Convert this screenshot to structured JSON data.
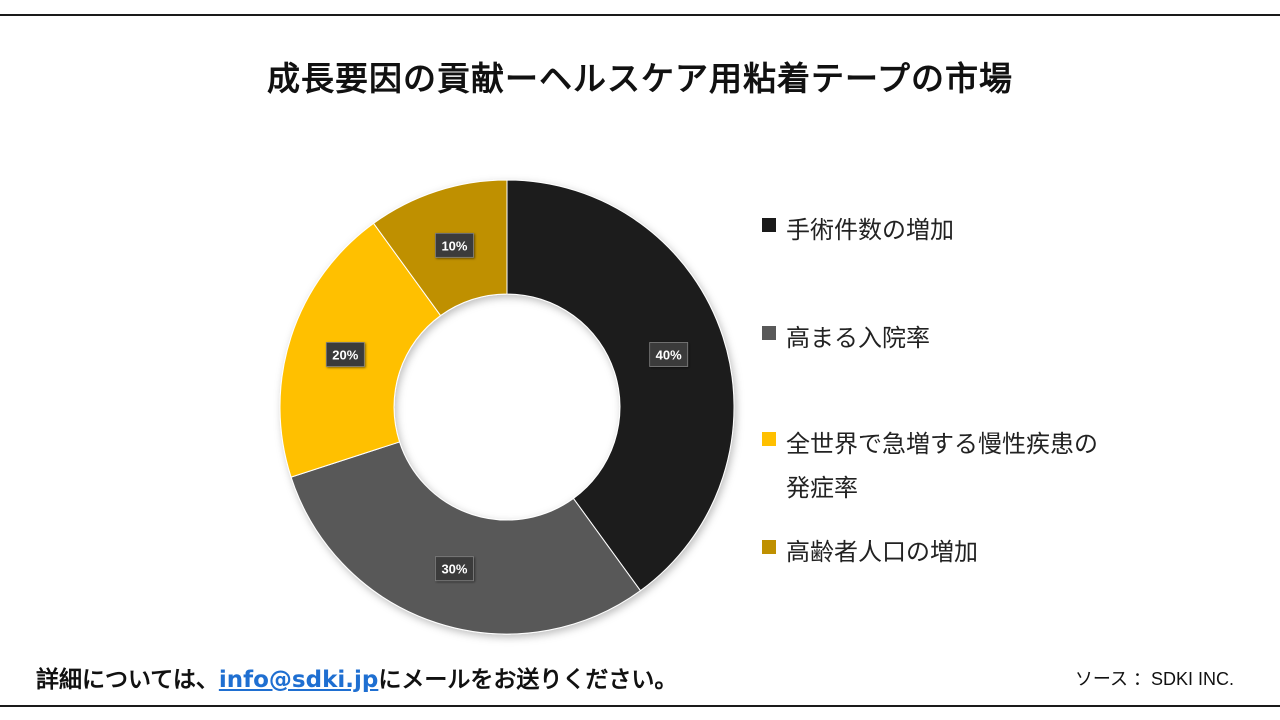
{
  "title": "成長要因の貢献ーヘルスケア用粘着テープの市場",
  "chart_data": {
    "type": "pie",
    "categories": [
      "手術件数の増加",
      "高まる入院率",
      "全世界で急増する慢性疾患の発症率",
      "高齢者人口の増加"
    ],
    "values": [
      40,
      30,
      20,
      10
    ],
    "labels": [
      "40%",
      "30%",
      "20%",
      "10%"
    ],
    "colors": [
      "#1a1a1a",
      "#595959",
      "#ffc000",
      "#bf9000"
    ]
  },
  "legend": [
    {
      "label_line1": "手術件数の増加",
      "label_line2": ""
    },
    {
      "label_line1": "高まる入院率",
      "label_line2": ""
    },
    {
      "label_line1": "全世界で急増する慢性疾患の",
      "label_line2": "発症率"
    },
    {
      "label_line1": "高齢者人口の増加",
      "label_line2": ""
    }
  ],
  "footer": {
    "prefix": "詳細については、",
    "email": "info@sdki.jp",
    "suffix": "にメールをお送りください。"
  },
  "source": "ソース ：SDKI INC."
}
